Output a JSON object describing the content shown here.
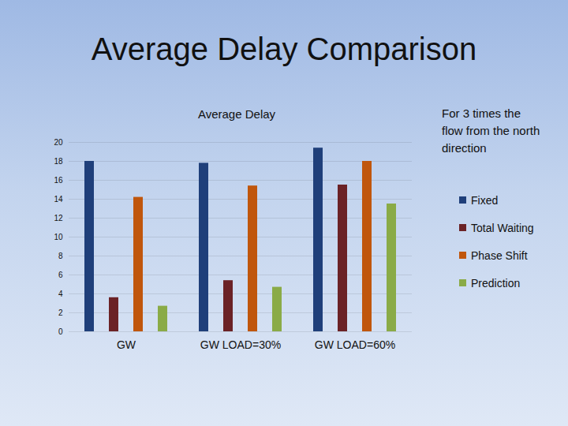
{
  "chart_data": {
    "type": "bar",
    "title": "Average Delay Comparison",
    "subtitle": "Average Delay",
    "annotations": [
      "For 3 times the flow from the north direction"
    ],
    "categories": [
      "GW",
      "GW LOAD=30%",
      "GW LOAD=60%"
    ],
    "series": [
      {
        "name": "Fixed",
        "color": "#1f3f7a",
        "values": [
          18,
          17.8,
          19.4
        ]
      },
      {
        "name": "Total Waiting",
        "color": "#6b2226",
        "values": [
          3.6,
          5.4,
          15.5
        ]
      },
      {
        "name": "Phase Shift",
        "color": "#c0560c",
        "values": [
          14.2,
          15.4,
          18
        ]
      },
      {
        "name": "Prediction",
        "color": "#8aab47",
        "values": [
          2.7,
          4.7,
          13.5
        ]
      }
    ],
    "ylim": [
      0,
      20
    ],
    "yticks": [
      0,
      2,
      4,
      6,
      8,
      10,
      12,
      14,
      16,
      18,
      20
    ],
    "grid": true,
    "legend": "right"
  }
}
